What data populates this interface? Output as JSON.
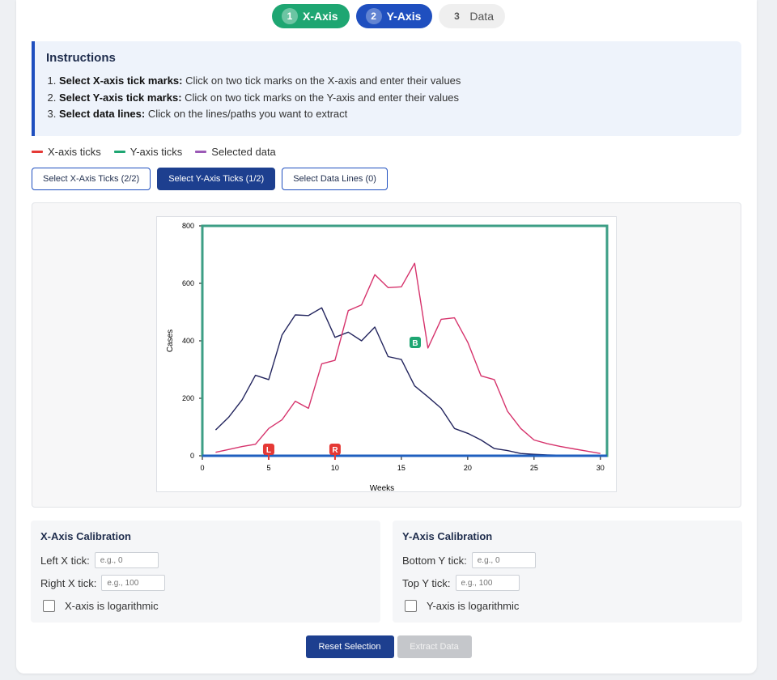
{
  "stepper": {
    "steps": [
      {
        "num": "1",
        "label": "X-Axis"
      },
      {
        "num": "2",
        "label": "Y-Axis"
      },
      {
        "num": "3",
        "label": "Data"
      }
    ]
  },
  "instructions": {
    "title": "Instructions",
    "items": [
      {
        "bold": "Select X-axis tick marks:",
        "text": " Click on two tick marks on the X-axis and enter their values"
      },
      {
        "bold": "Select Y-axis tick marks:",
        "text": " Click on two tick marks on the Y-axis and enter their values"
      },
      {
        "bold": "Select data lines:",
        "text": " Click on the lines/paths you want to extract"
      }
    ]
  },
  "legend": [
    {
      "label": "X-axis ticks",
      "color": "#e53935"
    },
    {
      "label": "Y-axis ticks",
      "color": "#1ea672"
    },
    {
      "label": "Selected data",
      "color": "#9b59b6"
    }
  ],
  "modes": {
    "x_ticks": "Select X-Axis Ticks (2/2)",
    "y_ticks": "Select Y-Axis Ticks (1/2)",
    "data_lines": "Select Data Lines (0)"
  },
  "markers": {
    "left": "L",
    "right": "R",
    "bottom": "B"
  },
  "chart_data": {
    "type": "line",
    "xlabel": "Weeks",
    "ylabel": "Cases",
    "xlim": [
      0,
      30.5
    ],
    "ylim": [
      0,
      800
    ],
    "x_ticks": [
      0,
      5,
      10,
      15,
      20,
      25,
      30
    ],
    "y_ticks": [
      0,
      200,
      400,
      600,
      800
    ],
    "series": [
      {
        "name": "navy",
        "color": "#23255e",
        "x": [
          1,
          2,
          3,
          4,
          5,
          6,
          7,
          8,
          9,
          10,
          11,
          12,
          13,
          14,
          15,
          16,
          17,
          18,
          19,
          20,
          21,
          22,
          23,
          24,
          25,
          26,
          27,
          28,
          29,
          30
        ],
        "values": [
          90,
          135,
          195,
          280,
          265,
          420,
          490,
          488,
          515,
          412,
          430,
          400,
          448,
          345,
          335,
          243,
          205,
          165,
          95,
          78,
          55,
          25,
          18,
          8,
          5,
          3,
          2,
          1,
          1,
          1
        ]
      },
      {
        "name": "crimson",
        "color": "#d6336c",
        "x": [
          1,
          2,
          3,
          4,
          5,
          6,
          7,
          8,
          9,
          10,
          11,
          12,
          13,
          14,
          15,
          16,
          17,
          18,
          19,
          20,
          21,
          22,
          23,
          24,
          25,
          26,
          27,
          28,
          29,
          30
        ],
        "values": [
          12,
          22,
          32,
          40,
          95,
          125,
          190,
          165,
          320,
          332,
          505,
          525,
          630,
          585,
          588,
          670,
          375,
          475,
          480,
          395,
          278,
          265,
          155,
          95,
          55,
          42,
          32,
          24,
          16,
          8
        ]
      }
    ],
    "selected_x_ticks": [
      {
        "marker": "L",
        "value": 5
      },
      {
        "marker": "R",
        "value": 10
      }
    ],
    "selected_y_ticks": [
      {
        "marker": "B",
        "value": 400
      }
    ]
  },
  "calibration": {
    "x": {
      "title": "X-Axis Calibration",
      "left_label": "Left X tick:",
      "left_placeholder": "e.g., 0",
      "right_label": "Right X tick:",
      "right_placeholder": "e.g., 100",
      "log_label": "X-axis is logarithmic"
    },
    "y": {
      "title": "Y-Axis Calibration",
      "bottom_label": "Bottom Y tick:",
      "bottom_placeholder": "e.g., 0",
      "top_label": "Top Y tick:",
      "top_placeholder": "e.g., 100",
      "log_label": "Y-axis is logarithmic"
    }
  },
  "footer": {
    "reset": "Reset Selection",
    "extract": "Extract Data"
  }
}
